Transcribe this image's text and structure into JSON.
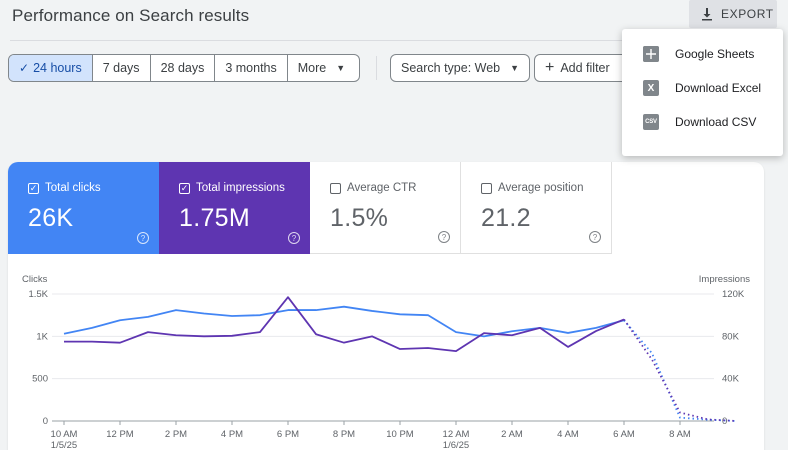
{
  "header": {
    "title": "Performance on Search results",
    "export_label": "EXPORT"
  },
  "filters": {
    "date_options": [
      {
        "label": "24 hours",
        "selected": true
      },
      {
        "label": "7 days",
        "selected": false
      },
      {
        "label": "28 days",
        "selected": false
      },
      {
        "label": "3 months",
        "selected": false
      }
    ],
    "more_label": "More",
    "search_type_label": "Search type: Web",
    "add_filter_label": "Add filter"
  },
  "export_menu": {
    "items": [
      {
        "label": "Google Sheets",
        "icon": "sheets-icon"
      },
      {
        "label": "Download Excel",
        "icon": "excel-icon",
        "glyph": "X"
      },
      {
        "label": "Download CSV",
        "icon": "csv-icon",
        "glyph": "CSV"
      }
    ]
  },
  "metrics": [
    {
      "label": "Total clicks",
      "value": "26K",
      "checked": true
    },
    {
      "label": "Total impressions",
      "value": "1.75M",
      "checked": true
    },
    {
      "label": "Average CTR",
      "value": "1.5%",
      "checked": false
    },
    {
      "label": "Average position",
      "value": "21.2",
      "checked": false
    }
  ],
  "colors": {
    "clicks": "#4285f4",
    "impressions": "#5e35b1"
  },
  "chart_data": {
    "type": "line",
    "left_axis_label": "Clicks",
    "right_axis_label": "Impressions",
    "left_ticks": [
      "0",
      "500",
      "1K",
      "1.5K"
    ],
    "left_ylim": [
      0,
      1500
    ],
    "right_ticks": [
      "0",
      "40K",
      "80K",
      "120K"
    ],
    "right_ylim": [
      0,
      120000
    ],
    "x_tick_labels": [
      "10 AM",
      "12 PM",
      "2 PM",
      "4 PM",
      "6 PM",
      "8 PM",
      "10 PM",
      "12 AM",
      "2 AM",
      "4 AM",
      "6 AM",
      "8 AM"
    ],
    "x_sub_labels": [
      "1/5/25",
      "",
      "",
      "",
      "",
      "",
      "",
      "1/6/25",
      "",
      "",
      "",
      ""
    ],
    "hours": 25,
    "complete_hours": 21,
    "series": [
      {
        "name": "Clicks",
        "axis": "left",
        "values": [
          1030,
          1100,
          1190,
          1230,
          1310,
          1270,
          1240,
          1250,
          1310,
          1310,
          1350,
          1300,
          1260,
          1250,
          1050,
          1000,
          1060,
          1100,
          1040,
          1100,
          1190,
          800,
          40,
          15,
          0
        ]
      },
      {
        "name": "Impressions",
        "axis": "right",
        "values": [
          75000,
          75000,
          74000,
          84000,
          81000,
          80000,
          80500,
          84000,
          117000,
          82000,
          74000,
          80000,
          68000,
          69000,
          66000,
          83000,
          81000,
          88000,
          70000,
          85000,
          96000,
          58000,
          8000,
          1500,
          0
        ]
      }
    ]
  }
}
